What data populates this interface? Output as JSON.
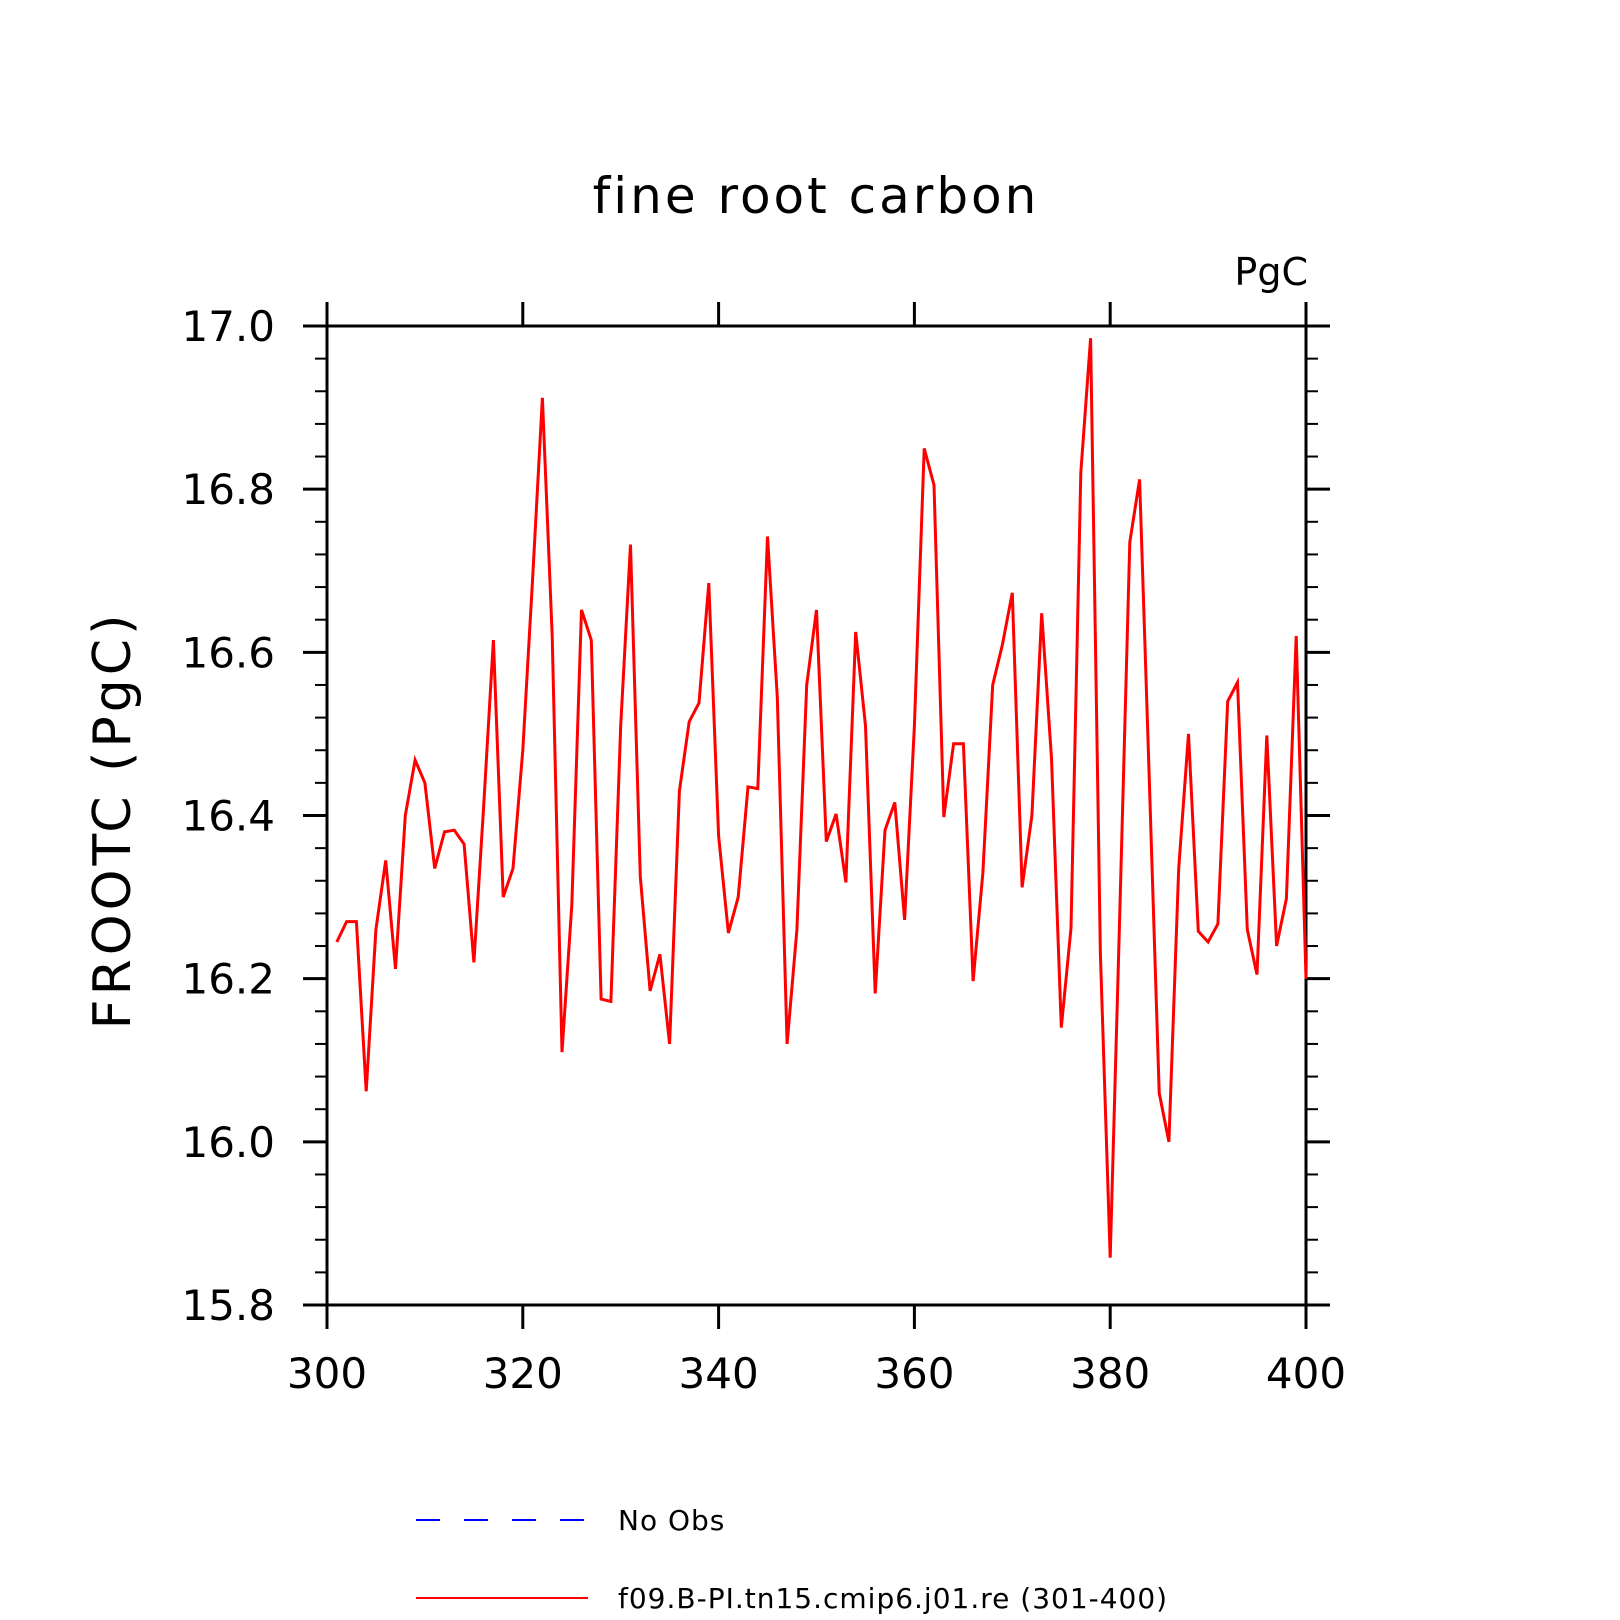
{
  "chart_data": {
    "type": "line",
    "title": "fine root carbon",
    "units_label": "PgC",
    "xlabel": "",
    "ylabel": "FROOTC  (PgC)",
    "xlim": [
      300,
      400
    ],
    "ylim": [
      15.8,
      17.0
    ],
    "x_ticks": [
      300,
      320,
      340,
      360,
      380,
      400
    ],
    "y_ticks": [
      15.8,
      16.0,
      16.2,
      16.4,
      16.6,
      16.8,
      17.0
    ],
    "y_tick_labels": [
      "15.8",
      "16.0",
      "16.2",
      "16.4",
      "16.6",
      "16.8",
      "17.0"
    ],
    "grid": false,
    "legend_position": "bottom",
    "series": [
      {
        "name": "No Obs",
        "color": "#0000ff",
        "style": "dashed",
        "x": [],
        "y": []
      },
      {
        "name": "f09.B-PI.tn15.cmip6.j01.re (301-400)",
        "color": "#ff0000",
        "style": "solid",
        "x": [
          301,
          302,
          303,
          304,
          305,
          306,
          307,
          308,
          309,
          310,
          311,
          312,
          313,
          314,
          315,
          316,
          317,
          318,
          319,
          320,
          321,
          322,
          323,
          324,
          325,
          326,
          327,
          328,
          329,
          330,
          331,
          332,
          333,
          334,
          335,
          336,
          337,
          338,
          339,
          340,
          341,
          342,
          343,
          344,
          345,
          346,
          347,
          348,
          349,
          350,
          351,
          352,
          353,
          354,
          355,
          356,
          357,
          358,
          359,
          360,
          361,
          362,
          363,
          364,
          365,
          366,
          367,
          368,
          369,
          370,
          371,
          372,
          373,
          374,
          375,
          376,
          377,
          378,
          379,
          380,
          381,
          382,
          383,
          384,
          385,
          386,
          387,
          388,
          389,
          390,
          391,
          392,
          393,
          394,
          395,
          396,
          397,
          398,
          399,
          400
        ],
        "y": [
          16.245,
          16.27,
          16.27,
          16.062,
          16.26,
          16.345,
          16.212,
          16.4,
          16.468,
          16.44,
          16.335,
          16.38,
          16.382,
          16.365,
          16.22,
          16.41,
          16.615,
          16.3,
          16.335,
          16.48,
          16.69,
          16.912,
          16.62,
          16.11,
          16.29,
          16.652,
          16.615,
          16.175,
          16.172,
          16.51,
          16.732,
          16.325,
          16.185,
          16.23,
          16.12,
          16.43,
          16.515,
          16.538,
          16.685,
          16.375,
          16.256,
          16.3,
          16.435,
          16.433,
          16.742,
          16.545,
          16.12,
          16.26,
          16.56,
          16.652,
          16.368,
          16.402,
          16.318,
          16.625,
          16.51,
          16.182,
          16.382,
          16.416,
          16.272,
          16.51,
          16.85,
          16.805,
          16.398,
          16.488,
          16.488,
          16.197,
          16.33,
          16.56,
          16.61,
          16.673,
          16.312,
          16.4,
          16.648,
          16.47,
          16.14,
          16.262,
          16.82,
          16.985,
          16.23,
          15.858,
          16.29,
          16.735,
          16.812,
          16.44,
          16.06,
          16.0,
          16.335,
          16.5,
          16.258,
          16.245,
          16.267,
          16.54,
          16.563,
          16.26,
          16.205,
          16.498,
          16.24,
          16.298,
          16.62,
          16.2
        ]
      }
    ]
  }
}
